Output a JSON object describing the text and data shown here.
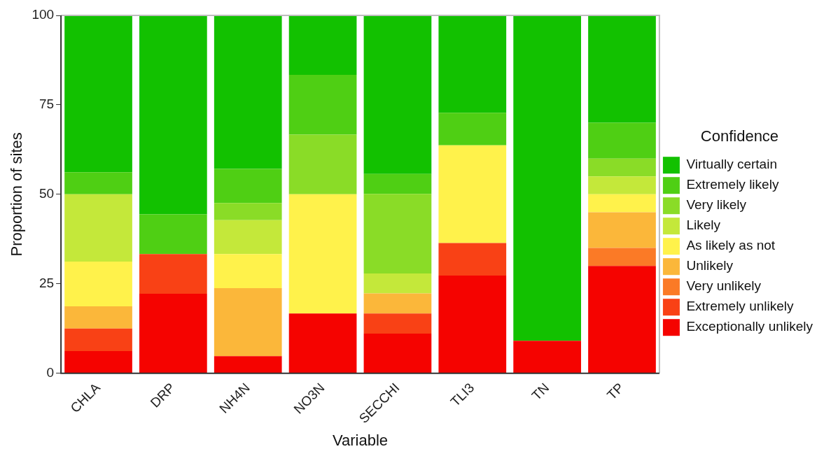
{
  "chart_data": {
    "type": "bar",
    "stacked": true,
    "xlabel": "Variable",
    "ylabel": "Proportion of sites",
    "legend_title": "Confidence",
    "legend": "right",
    "categories": [
      "CHLA",
      "DRP",
      "NH4N",
      "NO3N",
      "SECCHI",
      "TLI3",
      "TN",
      "TP"
    ],
    "ylim": [
      0,
      100
    ],
    "yticks": [
      0,
      25,
      50,
      75,
      100
    ],
    "grid": false,
    "series": [
      {
        "name": "Exceptionally unlikely",
        "color": "#f50300",
        "values": [
          6.2,
          22.2,
          4.8,
          16.7,
          11.1,
          27.3,
          9.1,
          30
        ]
      },
      {
        "name": "Extremely unlikely",
        "color": "#f94115",
        "values": [
          6.3,
          11.1,
          null,
          null,
          5.6,
          9.1,
          null,
          null
        ]
      },
      {
        "name": "Very unlikely",
        "color": "#fb7a26",
        "values": [
          null,
          null,
          null,
          null,
          null,
          null,
          null,
          5
        ]
      },
      {
        "name": "Unlikely",
        "color": "#fbb73a",
        "values": [
          6.2,
          null,
          19.0,
          null,
          5.6,
          null,
          null,
          10
        ]
      },
      {
        "name": "As likely as not",
        "color": "#fff24b",
        "values": [
          12.5,
          null,
          9.5,
          33.3,
          null,
          27.3,
          null,
          5
        ]
      },
      {
        "name": "Likely",
        "color": "#c4e83a",
        "values": [
          18.8,
          null,
          9.5,
          null,
          5.6,
          null,
          null,
          5
        ]
      },
      {
        "name": "Very likely",
        "color": "#8adc27",
        "values": [
          null,
          null,
          4.8,
          16.7,
          22.2,
          null,
          null,
          5
        ]
      },
      {
        "name": "Extremely likely",
        "color": "#4fcf14",
        "values": [
          6.2,
          11.1,
          9.5,
          16.7,
          5.6,
          9.1,
          null,
          10
        ]
      },
      {
        "name": "Virtually certain",
        "color": "#12c100",
        "values": [
          43.8,
          55.6,
          42.9,
          16.7,
          44.4,
          27.3,
          90.9,
          30
        ]
      }
    ]
  }
}
